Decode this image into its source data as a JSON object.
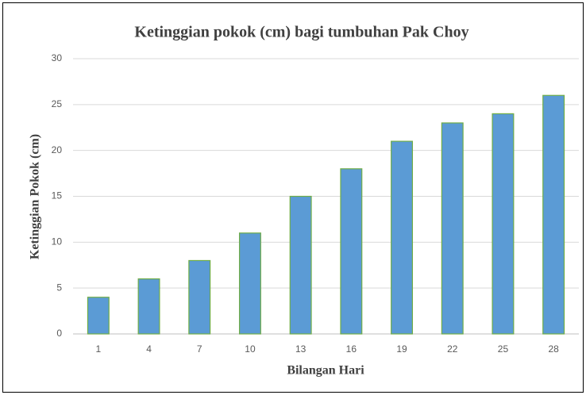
{
  "chart_data": {
    "type": "bar",
    "title": "Ketinggian pokok (cm) bagi tumbuhan Pak Choy",
    "x_label": "Bilangan Hari",
    "y_label": "Ketinggian Pokok (cm)",
    "categories": [
      "1",
      "4",
      "7",
      "10",
      "13",
      "16",
      "19",
      "22",
      "25",
      "28"
    ],
    "values": [
      4,
      6,
      8,
      11,
      15,
      18,
      21,
      23,
      24,
      26
    ],
    "color": "#5b9bd5",
    "edge_color": "#70ad47",
    "ylim": [
      0,
      30
    ],
    "yticks": [
      0,
      5,
      10,
      15,
      20,
      25,
      30
    ],
    "grid": true
  }
}
